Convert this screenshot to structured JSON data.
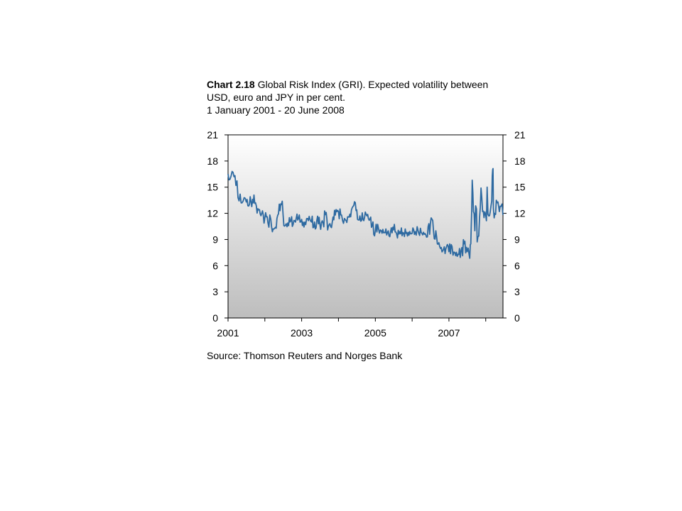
{
  "title": {
    "number": "Chart 2.18",
    "line1": "Global Risk Index (GRI).  Expected volatility between",
    "line2": "USD, euro and JPY in per cent.",
    "line3": "1 January 2001 - 20 June 2008"
  },
  "source": "Source: Thomson Reuters and Norges Bank",
  "colors": {
    "line": "#2e6aa1",
    "axis": "#000000",
    "gradient_top": "#ffffff",
    "gradient_bottom": "#bdbdbd"
  },
  "chart_data": {
    "type": "line",
    "title": "Global Risk Index (GRI).  Expected volatility between USD, euro and JPY in per cent.",
    "subtitle": "1 January 2001 - 20 June 2008",
    "xlabel": "",
    "ylabel": "",
    "xlim": [
      "2001-01-01",
      "2008-06-20"
    ],
    "ylim": [
      0,
      21
    ],
    "grid": false,
    "legend": "none",
    "x_ticks": [
      "2001",
      "2003",
      "2005",
      "2007"
    ],
    "y_ticks_left": [
      "0",
      "3",
      "6",
      "9",
      "12",
      "15",
      "18",
      "21"
    ],
    "y_ticks_right": [
      "0",
      "3",
      "6",
      "9",
      "12",
      "15",
      "18",
      "21"
    ],
    "series": [
      {
        "x": [
          "2001-01-01",
          "2001-01-20",
          "2001-02-10",
          "2001-03-01",
          "2001-03-20",
          "2001-04-10",
          "2001-05-01",
          "2001-05-20",
          "2001-06-10",
          "2001-07-01",
          "2001-08-01",
          "2001-09-01",
          "2001-09-15",
          "2001-10-01",
          "2001-11-01",
          "2001-12-01",
          "2002-01-01",
          "2002-02-01",
          "2002-03-01",
          "2002-04-01",
          "2002-05-01",
          "2002-06-01",
          "2002-06-15",
          "2002-07-01",
          "2002-08-01",
          "2002-09-01",
          "2002-10-01",
          "2002-11-01",
          "2002-12-01",
          "2003-01-01",
          "2003-02-01",
          "2003-03-01",
          "2003-04-01",
          "2003-05-01",
          "2003-06-01",
          "2003-07-01",
          "2003-08-01",
          "2003-09-01",
          "2003-10-01",
          "2003-11-01",
          "2003-12-01",
          "2004-01-01",
          "2004-02-01",
          "2004-03-01",
          "2004-04-01",
          "2004-05-01",
          "2004-06-01",
          "2004-07-01",
          "2004-08-01",
          "2004-09-01",
          "2004-10-01",
          "2004-11-01",
          "2004-12-01",
          "2005-01-01",
          "2005-02-01",
          "2005-03-01",
          "2005-04-01",
          "2005-05-01",
          "2005-06-01",
          "2005-07-01",
          "2005-08-01",
          "2005-09-01",
          "2005-10-01",
          "2005-11-01",
          "2005-12-01",
          "2006-01-01",
          "2006-02-01",
          "2006-03-01",
          "2006-04-01",
          "2006-05-01",
          "2006-06-01",
          "2006-07-01",
          "2006-08-01",
          "2006-09-01",
          "2006-10-01",
          "2006-11-01",
          "2006-12-01",
          "2007-01-01",
          "2007-02-01",
          "2007-03-01",
          "2007-04-01",
          "2007-05-01",
          "2007-06-01",
          "2007-07-01",
          "2007-07-20",
          "2007-08-01",
          "2007-08-10",
          "2007-08-20",
          "2007-09-01",
          "2007-09-15",
          "2007-10-01",
          "2007-10-15",
          "2007-11-01",
          "2007-11-15",
          "2007-12-01",
          "2007-12-15",
          "2008-01-01",
          "2008-01-15",
          "2008-02-01",
          "2008-02-15",
          "2008-03-01",
          "2008-03-10",
          "2008-03-17",
          "2008-04-01",
          "2008-04-15",
          "2008-05-01",
          "2008-05-15",
          "2008-06-01",
          "2008-06-20"
        ],
        "values": [
          16.5,
          15.9,
          16.8,
          16.2,
          15.2,
          13.8,
          14.2,
          13.2,
          13.8,
          13.3,
          13.0,
          13.6,
          14.1,
          13.2,
          12.4,
          12.0,
          11.5,
          10.9,
          11.3,
          10.2,
          11.4,
          12.3,
          13.0,
          11.8,
          10.8,
          11.5,
          10.5,
          11.0,
          11.4,
          11.3,
          11.0,
          11.4,
          11.1,
          10.4,
          11.2,
          10.7,
          10.9,
          12.1,
          10.7,
          11.0,
          11.8,
          12.2,
          11.8,
          11.4,
          11.6,
          11.6,
          12.9,
          12.4,
          11.7,
          11.3,
          11.9,
          11.2,
          10.6,
          10.0,
          10.3,
          10.0,
          9.8,
          9.8,
          9.9,
          10.1,
          9.6,
          9.9,
          9.8,
          9.7,
          9.5,
          9.7,
          9.9,
          10.0,
          9.8,
          9.6,
          9.3,
          10.8,
          10.0,
          9.3,
          8.2,
          7.7,
          7.9,
          7.6,
          8.2,
          7.5,
          7.3,
          7.7,
          8.5,
          7.6,
          7.3,
          8.4,
          10.4,
          15.8,
          12.2,
          10.0,
          12.5,
          9.3,
          11.6,
          14.9,
          12.2,
          11.5,
          11.8,
          15.0,
          11.7,
          12.2,
          13.4,
          17.0,
          12.6,
          12.0,
          13.5,
          13.3,
          12.2,
          12.8,
          11.8
        ]
      }
    ]
  }
}
